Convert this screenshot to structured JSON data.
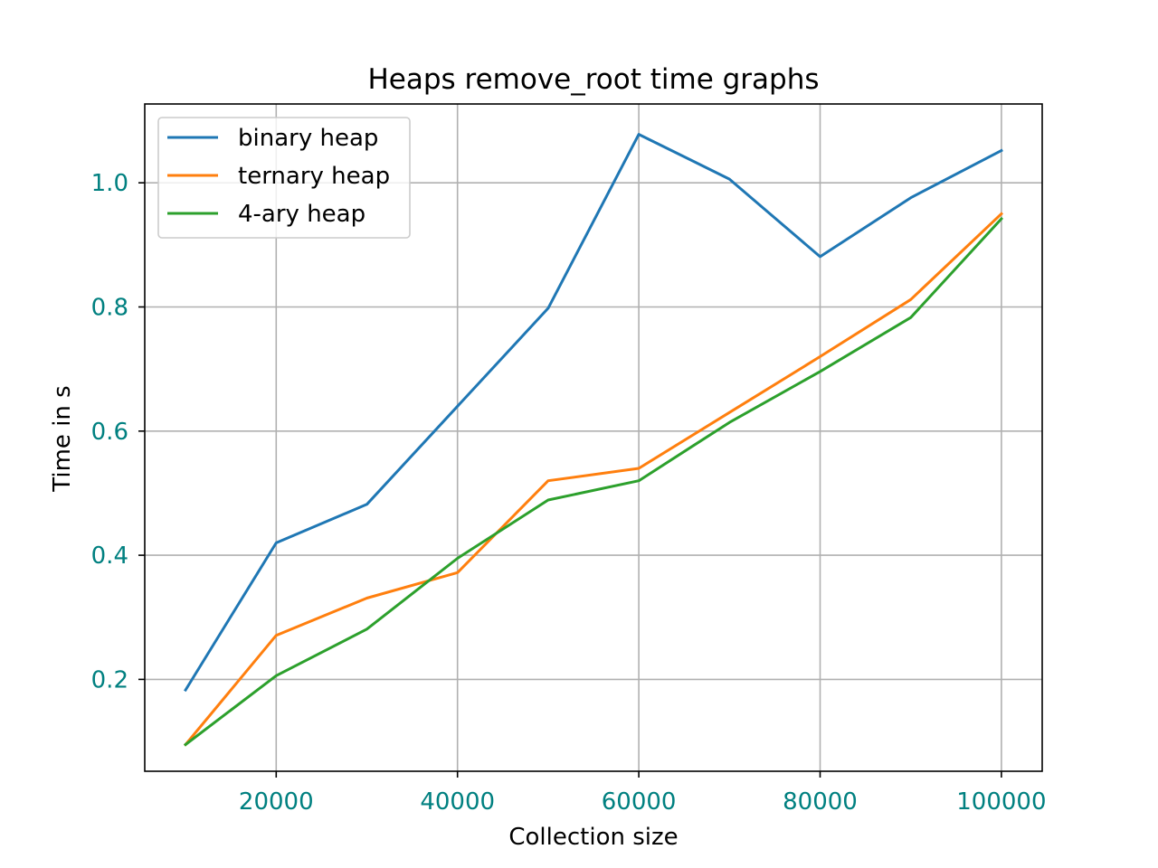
{
  "chart_data": {
    "type": "line",
    "title": "Heaps remove_root time graphs",
    "xlabel": "Collection size",
    "ylabel": "Time in s",
    "x": [
      10000,
      20000,
      30000,
      40000,
      50000,
      60000,
      70000,
      80000,
      90000,
      100000
    ],
    "xlim": [
      5500,
      104500
    ],
    "ylim": [
      0.052,
      1.127
    ],
    "x_ticks": [
      20000,
      40000,
      60000,
      80000,
      100000
    ],
    "x_tick_labels": [
      "20000",
      "40000",
      "60000",
      "80000",
      "100000"
    ],
    "y_ticks": [
      0.2,
      0.4,
      0.6,
      0.8,
      1.0
    ],
    "y_tick_labels": [
      "0.2",
      "0.4",
      "0.6",
      "0.8",
      "1.0"
    ],
    "tick_label_color": "#008080",
    "grid": true,
    "legend_position": "upper-left",
    "series": [
      {
        "name": "binary heap",
        "color": "#1f77b4",
        "values": [
          0.183,
          0.42,
          0.482,
          0.64,
          0.798,
          1.078,
          1.006,
          0.881,
          0.976,
          1.052
        ]
      },
      {
        "name": "ternary heap",
        "color": "#ff7f0e",
        "values": [
          0.095,
          0.271,
          0.331,
          0.372,
          0.52,
          0.54,
          0.63,
          0.72,
          0.812,
          0.95
        ]
      },
      {
        "name": "4-ary heap",
        "color": "#2ca02c",
        "values": [
          0.095,
          0.206,
          0.281,
          0.395,
          0.489,
          0.52,
          0.614,
          0.696,
          0.783,
          0.942
        ]
      }
    ]
  }
}
